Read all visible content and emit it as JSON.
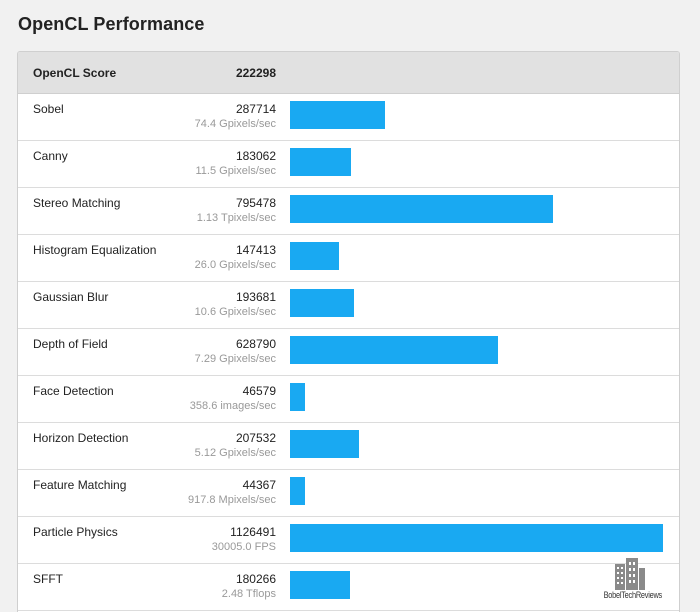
{
  "title": "OpenCL Performance",
  "header": {
    "label": "OpenCL Score",
    "score": "222298"
  },
  "rows": [
    {
      "name": "Sobel",
      "score": "287714",
      "detail": "74.4 Gpixels/sec"
    },
    {
      "name": "Canny",
      "score": "183062",
      "detail": "11.5 Gpixels/sec"
    },
    {
      "name": "Stereo Matching",
      "score": "795478",
      "detail": "1.13 Tpixels/sec"
    },
    {
      "name": "Histogram Equalization",
      "score": "147413",
      "detail": "26.0 Gpixels/sec"
    },
    {
      "name": "Gaussian Blur",
      "score": "193681",
      "detail": "10.6 Gpixels/sec"
    },
    {
      "name": "Depth of Field",
      "score": "628790",
      "detail": "7.29 Gpixels/sec"
    },
    {
      "name": "Face Detection",
      "score": "46579",
      "detail": "358.6 images/sec"
    },
    {
      "name": "Horizon Detection",
      "score": "207532",
      "detail": "5.12 Gpixels/sec"
    },
    {
      "name": "Feature Matching",
      "score": "44367",
      "detail": "917.8 Mpixels/sec"
    },
    {
      "name": "Particle Physics",
      "score": "1126491",
      "detail": "30005.0 FPS"
    },
    {
      "name": "SFFT",
      "score": "180266",
      "detail": "2.48 Tflops"
    }
  ],
  "watermark": {
    "text": "BobelTechReviews",
    "icon": "building-logo-icon"
  },
  "colors": {
    "bar": "#19a9f2",
    "header_bg": "#e1e1e1",
    "page_bg": "#f1f1f1"
  }
}
